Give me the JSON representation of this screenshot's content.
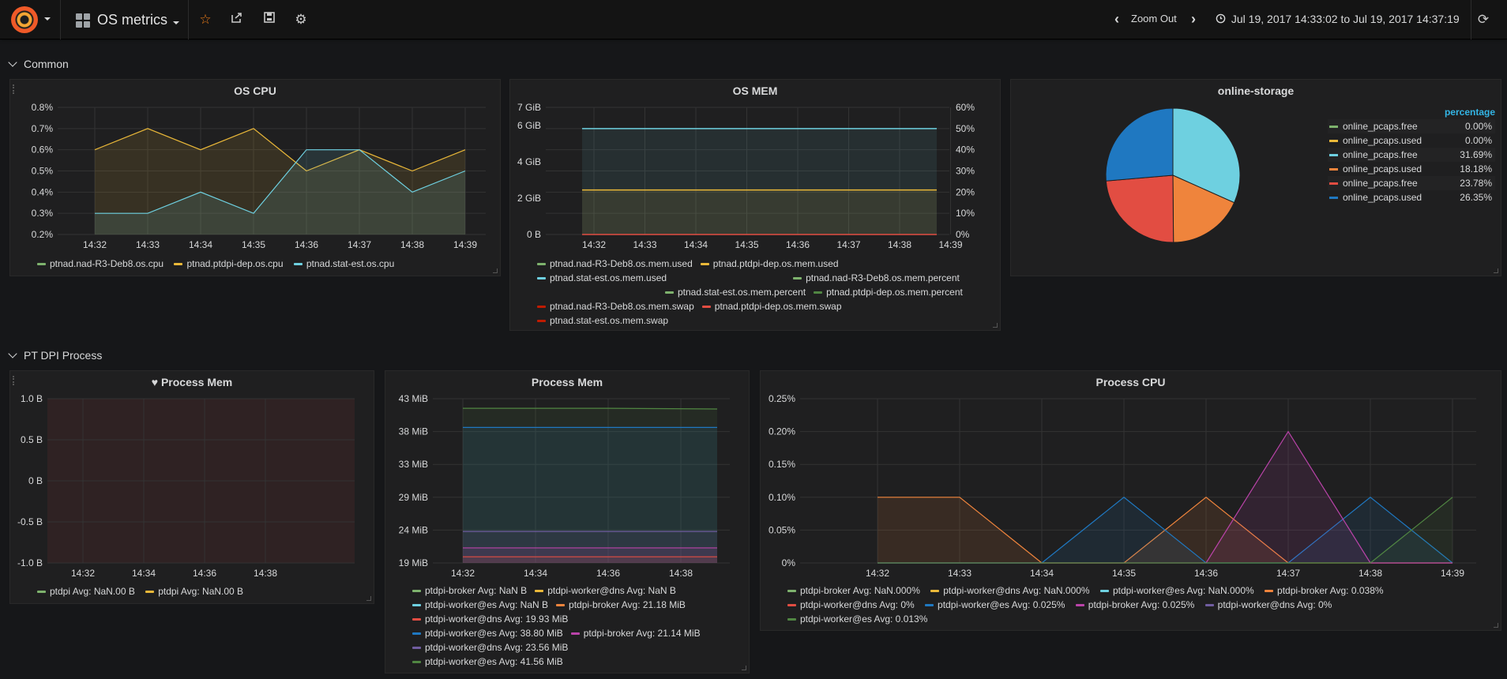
{
  "navbar": {
    "dashboard_title": "OS metrics",
    "zoom_out_label": "Zoom Out",
    "time_range": "Jul 19, 2017 14:33:02 to Jul 19, 2017 14:37:19"
  },
  "rows": [
    {
      "title": "Common"
    },
    {
      "title": "PT DPI Process"
    }
  ],
  "colors": {
    "green": "#7eb26d",
    "yellow": "#eab839",
    "lightblue": "#6ed0e0",
    "orange": "#ef843c",
    "red": "#e24d42",
    "blue": "#1f78c1",
    "pink": "#ba43a9",
    "purple": "#705da0",
    "darkgreen": "#508642"
  },
  "panels": {
    "os_cpu": {
      "title": "OS CPU",
      "legend": [
        "ptnad.nad-R3-Deb8.os.cpu",
        "ptnad.ptdpi-dep.os.cpu",
        "ptnad.stat-est.os.cpu"
      ]
    },
    "os_mem": {
      "title": "OS MEM",
      "legend": [
        [
          "ptnad.nad-R3-Deb8.os.mem.used",
          "ptnad.ptdpi-dep.os.mem.used"
        ],
        [
          "ptnad.stat-est.os.mem.used",
          "ptnad.nad-R3-Deb8.os.mem.percent"
        ],
        [
          "ptnad.stat-est.os.mem.percent",
          "ptnad.ptdpi-dep.os.mem.percent"
        ],
        [
          "ptnad.nad-R3-Deb8.os.mem.swap",
          "ptnad.ptdpi-dep.os.mem.swap"
        ],
        [
          "ptnad.stat-est.os.mem.swap"
        ]
      ]
    },
    "online_storage": {
      "title": "online-storage",
      "legend_header": "percentage",
      "items": [
        {
          "name": "online_pcaps.free",
          "value": "0.00%",
          "color": "#7eb26d"
        },
        {
          "name": "online_pcaps.used",
          "value": "0.00%",
          "color": "#eab839"
        },
        {
          "name": "online_pcaps.free",
          "value": "31.69%",
          "color": "#6ed0e0"
        },
        {
          "name": "online_pcaps.used",
          "value": "18.18%",
          "color": "#ef843c"
        },
        {
          "name": "online_pcaps.free",
          "value": "23.78%",
          "color": "#e24d42"
        },
        {
          "name": "online_pcaps.used",
          "value": "26.35%",
          "color": "#1f78c1"
        }
      ]
    },
    "process_mem_1": {
      "title": "Process Mem",
      "legend": [
        "ptdpi  Avg: NaN.00 B",
        "ptdpi  Avg: NaN.00 B"
      ]
    },
    "process_mem_2": {
      "title": "Process Mem",
      "legend": [
        [
          "ptdpi-broker  Avg: NaN B",
          "ptdpi-worker@dns  Avg: NaN B"
        ],
        [
          "ptdpi-worker@es  Avg: NaN B",
          "ptdpi-broker  Avg: 21.18 MiB"
        ],
        [
          "ptdpi-worker@dns  Avg: 19.93 MiB"
        ],
        [
          "ptdpi-worker@es  Avg: 38.80 MiB",
          "ptdpi-broker  Avg: 21.14 MiB"
        ],
        [
          "ptdpi-worker@dns  Avg: 23.56 MiB"
        ],
        [
          "ptdpi-worker@es  Avg: 41.56 MiB"
        ]
      ]
    },
    "process_cpu": {
      "title": "Process CPU",
      "legend": [
        [
          "ptdpi-broker  Avg: NaN.000%",
          "ptdpi-worker@dns  Avg: NaN.000%",
          "ptdpi-worker@es  Avg: NaN.000%",
          "ptdpi-broker  Avg: 0.038%"
        ],
        [
          "ptdpi-worker@dns  Avg: 0%",
          "ptdpi-worker@es  Avg: 0.025%",
          "ptdpi-broker  Avg: 0.025%",
          "ptdpi-worker@dns  Avg: 0%"
        ],
        [
          "ptdpi-worker@es  Avg: 0.013%"
        ]
      ]
    }
  },
  "chart_data": [
    {
      "type": "line",
      "title": "OS CPU",
      "x": [
        "14:32",
        "14:33",
        "14:34",
        "14:35",
        "14:36",
        "14:37",
        "14:38",
        "14:39"
      ],
      "y_ticks": [
        "0.2%",
        "0.3%",
        "0.4%",
        "0.5%",
        "0.6%",
        "0.7%",
        "0.8%"
      ],
      "ylim": [
        0.2,
        0.8
      ],
      "series": [
        {
          "name": "ptnad.ptdpi-dep.os.cpu",
          "color": "#eab839",
          "values": [
            0.6,
            0.7,
            0.6,
            0.7,
            0.5,
            0.6,
            0.5,
            0.6
          ]
        },
        {
          "name": "ptnad.stat-est.os.cpu",
          "color": "#6ed0e0",
          "values": [
            0.3,
            0.3,
            0.4,
            0.3,
            0.6,
            0.6,
            0.4,
            0.5
          ]
        }
      ]
    },
    {
      "type": "area",
      "title": "OS MEM",
      "x": [
        "14:32",
        "14:33",
        "14:34",
        "14:35",
        "14:36",
        "14:37",
        "14:38",
        "14:39"
      ],
      "y_ticks": [
        "0 B",
        "2 GiB",
        "4 GiB",
        "6 GiB",
        "7 GiB"
      ],
      "y2_ticks": [
        "0%",
        "10%",
        "20%",
        "30%",
        "40%",
        "50%",
        "60%"
      ],
      "series": [
        {
          "name": "ptnad.stat-est.os.mem.used",
          "color": "#6ed0e0",
          "values": [
            50,
            50,
            50,
            50,
            50,
            50,
            50,
            50
          ],
          "unit": "%"
        },
        {
          "name": "ptnad.ptdpi-dep.os.mem.used",
          "color": "#eab839",
          "values": [
            21,
            21,
            21,
            21,
            21,
            21,
            21,
            21
          ],
          "unit": "%"
        },
        {
          "name": "ptnad.nad-R3-Deb8.os.mem.swap",
          "color": "#e24d42",
          "values": [
            0,
            0,
            0,
            0,
            0,
            0,
            0,
            0
          ],
          "unit": "%"
        }
      ]
    },
    {
      "type": "pie",
      "title": "online-storage",
      "categories": [
        "online_pcaps.free",
        "online_pcaps.used",
        "online_pcaps.free",
        "online_pcaps.used",
        "online_pcaps.free",
        "online_pcaps.used"
      ],
      "values": [
        0.0,
        0.0,
        31.69,
        18.18,
        23.78,
        26.35
      ],
      "colors": [
        "#7eb26d",
        "#eab839",
        "#6ed0e0",
        "#ef843c",
        "#e24d42",
        "#1f78c1"
      ]
    },
    {
      "type": "line",
      "title": "Process Mem",
      "x": [
        "14:32",
        "14:34",
        "14:36",
        "14:38"
      ],
      "y_ticks": [
        "-1.0 B",
        "-0.5 B",
        "0 B",
        "0.5 B",
        "1.0 B"
      ],
      "ylim": [
        -1.0,
        1.0
      ],
      "series": []
    },
    {
      "type": "area",
      "title": "Process Mem",
      "x": [
        "14:32",
        "14:34",
        "14:36",
        "14:38"
      ],
      "y_ticks": [
        "19 MiB",
        "24 MiB",
        "29 MiB",
        "33 MiB",
        "38 MiB",
        "43 MiB"
      ],
      "ylim": [
        19,
        43
      ],
      "series": [
        {
          "name": "ptdpi-worker@es",
          "color": "#508642",
          "values": [
            41.6,
            41.6,
            41.6,
            41.5
          ]
        },
        {
          "name": "ptdpi-worker@es",
          "color": "#1f78c1",
          "values": [
            38.8,
            38.8,
            38.8,
            38.8
          ]
        },
        {
          "name": "ptdpi-worker@dns",
          "color": "#705da0",
          "values": [
            23.6,
            23.6,
            23.6,
            23.6
          ]
        },
        {
          "name": "ptdpi-broker",
          "color": "#ba43a9",
          "values": [
            21.2,
            21.2,
            21.2,
            21.2
          ]
        },
        {
          "name": "ptdpi-worker@dns",
          "color": "#e24d42",
          "values": [
            19.9,
            19.9,
            19.9,
            19.9
          ]
        }
      ]
    },
    {
      "type": "area",
      "title": "Process CPU",
      "x": [
        "14:32",
        "14:33",
        "14:34",
        "14:35",
        "14:36",
        "14:37",
        "14:38",
        "14:39"
      ],
      "y_ticks": [
        "0%",
        "0.05%",
        "0.10%",
        "0.15%",
        "0.20%",
        "0.25%"
      ],
      "ylim": [
        0,
        0.25
      ],
      "series": [
        {
          "name": "ptdpi-broker",
          "color": "#ef843c",
          "values": [
            0.1,
            0.1,
            0,
            0,
            0.1,
            0,
            0,
            0
          ]
        },
        {
          "name": "ptdpi-worker@es",
          "color": "#1f78c1",
          "values": [
            0,
            0,
            0,
            0.1,
            0,
            0,
            0.1,
            0
          ]
        },
        {
          "name": "ptdpi-broker",
          "color": "#ba43a9",
          "values": [
            0,
            0,
            0,
            0,
            0,
            0.2,
            0,
            0
          ]
        },
        {
          "name": "ptdpi-worker@es",
          "color": "#508642",
          "values": [
            0,
            0,
            0,
            0,
            0,
            0,
            0,
            0.1
          ]
        }
      ]
    }
  ]
}
